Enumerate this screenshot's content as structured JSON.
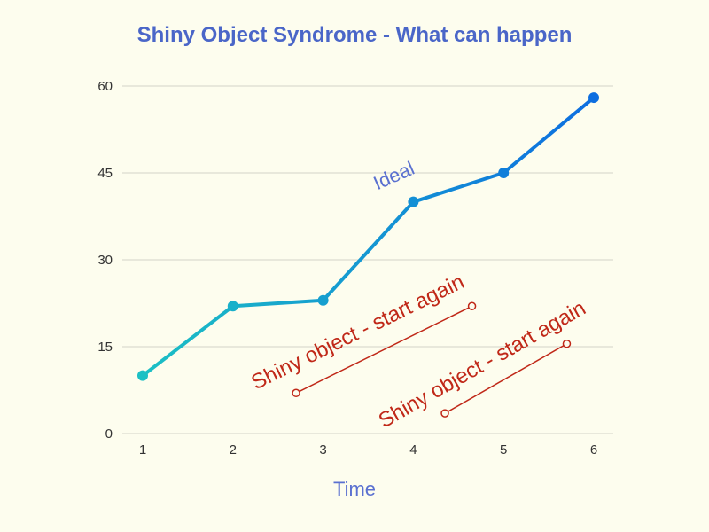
{
  "chart_data": {
    "type": "line",
    "title": "Shiny Object Syndrome - What can happen",
    "xlabel": "Time",
    "ylabel": "",
    "x": [
      1,
      2,
      3,
      4,
      5,
      6
    ],
    "xlim": [
      1,
      6
    ],
    "ylim": [
      0,
      60
    ],
    "yticks": [
      0,
      15,
      30,
      45,
      60
    ],
    "grid": true,
    "series": [
      {
        "name": "",
        "values": [
          10,
          22,
          23,
          40,
          45,
          58
        ]
      }
    ],
    "annotations": [
      {
        "text": "Ideal",
        "x": 3.6,
        "y": 42
      },
      {
        "text": "Shiny object - start again",
        "segment": [
          [
            2.7,
            7
          ],
          [
            4.65,
            22
          ]
        ]
      },
      {
        "text": "Shiny object - start again",
        "segment": [
          [
            4.35,
            3.5
          ],
          [
            5.7,
            15.5
          ]
        ]
      }
    ],
    "colors": {
      "line_start": "#1cc0c4",
      "line_end": "#0d6ee0",
      "shiny": "#c02818",
      "text_blue": "#5a70d0",
      "title_blue": "#4a66c8",
      "background": "#fdfdee"
    }
  }
}
